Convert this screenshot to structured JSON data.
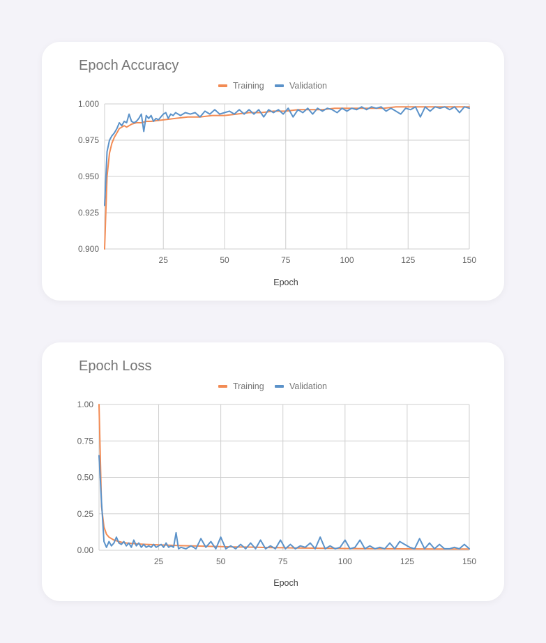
{
  "chart_data": [
    {
      "type": "line",
      "title": "Epoch Accuracy",
      "xlabel": "Epoch",
      "ylabel": "",
      "xlim": [
        1,
        150
      ],
      "ylim": [
        0.9,
        1.0
      ],
      "xticks": [
        25,
        50,
        75,
        100,
        125,
        150
      ],
      "yticks": [
        0.9,
        0.925,
        0.95,
        0.975,
        1.0
      ],
      "ytick_labels": [
        "0.900",
        "0.925",
        "0.950",
        "0.975",
        "1.000"
      ],
      "grid": true,
      "legend_position": "top-center",
      "series": [
        {
          "name": "Training",
          "color": "#f28b54",
          "x": [
            1,
            2,
            3,
            4,
            5,
            6,
            7,
            8,
            9,
            10,
            12,
            14,
            16,
            18,
            20,
            25,
            30,
            35,
            40,
            45,
            50,
            55,
            60,
            65,
            70,
            75,
            80,
            85,
            90,
            95,
            100,
            105,
            110,
            115,
            120,
            125,
            130,
            135,
            140,
            145,
            150
          ],
          "y": [
            0.9,
            0.95,
            0.966,
            0.973,
            0.977,
            0.98,
            0.983,
            0.984,
            0.985,
            0.984,
            0.986,
            0.987,
            0.987,
            0.988,
            0.988,
            0.989,
            0.99,
            0.991,
            0.991,
            0.992,
            0.992,
            0.993,
            0.994,
            0.994,
            0.995,
            0.995,
            0.996,
            0.996,
            0.996,
            0.997,
            0.997,
            0.997,
            0.997,
            0.997,
            0.998,
            0.998,
            0.998,
            0.998,
            0.998,
            0.998,
            0.998
          ]
        },
        {
          "name": "Validation",
          "color": "#5b92c9",
          "x": [
            1,
            2,
            3,
            4,
            5,
            6,
            7,
            8,
            9,
            10,
            11,
            12,
            13,
            14,
            15,
            16,
            17,
            18,
            19,
            20,
            21,
            22,
            23,
            24,
            25,
            26,
            27,
            28,
            29,
            30,
            32,
            34,
            36,
            38,
            40,
            42,
            44,
            46,
            48,
            50,
            52,
            54,
            56,
            58,
            60,
            62,
            64,
            66,
            68,
            70,
            72,
            74,
            76,
            78,
            80,
            82,
            84,
            86,
            88,
            90,
            92,
            94,
            96,
            98,
            100,
            102,
            104,
            106,
            108,
            110,
            112,
            114,
            116,
            118,
            120,
            122,
            124,
            126,
            128,
            130,
            132,
            134,
            136,
            138,
            140,
            142,
            144,
            146,
            148,
            150
          ],
          "y": [
            0.93,
            0.967,
            0.975,
            0.978,
            0.98,
            0.983,
            0.987,
            0.985,
            0.988,
            0.987,
            0.993,
            0.988,
            0.987,
            0.988,
            0.99,
            0.993,
            0.981,
            0.992,
            0.99,
            0.992,
            0.988,
            0.99,
            0.989,
            0.991,
            0.993,
            0.994,
            0.99,
            0.993,
            0.992,
            0.994,
            0.992,
            0.994,
            0.993,
            0.994,
            0.991,
            0.995,
            0.993,
            0.996,
            0.993,
            0.994,
            0.995,
            0.993,
            0.996,
            0.993,
            0.996,
            0.993,
            0.996,
            0.991,
            0.996,
            0.994,
            0.996,
            0.993,
            0.997,
            0.991,
            0.996,
            0.994,
            0.997,
            0.993,
            0.997,
            0.995,
            0.997,
            0.996,
            0.994,
            0.997,
            0.995,
            0.997,
            0.996,
            0.998,
            0.996,
            0.998,
            0.997,
            0.998,
            0.995,
            0.997,
            0.995,
            0.993,
            0.997,
            0.996,
            0.998,
            0.991,
            0.998,
            0.995,
            0.998,
            0.997,
            0.998,
            0.996,
            0.998,
            0.994,
            0.998,
            0.997
          ]
        }
      ]
    },
    {
      "type": "line",
      "title": "Epoch Loss",
      "xlabel": "Epoch",
      "ylabel": "",
      "xlim": [
        1,
        150
      ],
      "ylim": [
        0,
        1.0
      ],
      "xticks": [
        25,
        50,
        75,
        100,
        125,
        150
      ],
      "yticks": [
        0,
        0.25,
        0.5,
        0.75,
        1.0
      ],
      "ytick_labels": [
        "0.00",
        "0.25",
        "0.50",
        "0.75",
        "1.00"
      ],
      "grid": true,
      "legend_position": "top-center",
      "series": [
        {
          "name": "Training",
          "color": "#f28b54",
          "x": [
            1,
            2,
            3,
            4,
            5,
            6,
            7,
            8,
            9,
            10,
            12,
            14,
            16,
            18,
            20,
            25,
            30,
            35,
            40,
            45,
            50,
            55,
            60,
            65,
            70,
            75,
            80,
            85,
            90,
            95,
            100,
            110,
            120,
            130,
            140,
            150
          ],
          "y": [
            1.0,
            0.3,
            0.16,
            0.11,
            0.09,
            0.08,
            0.07,
            0.065,
            0.06,
            0.055,
            0.05,
            0.047,
            0.044,
            0.042,
            0.04,
            0.037,
            0.034,
            0.031,
            0.029,
            0.027,
            0.025,
            0.023,
            0.022,
            0.02,
            0.018,
            0.017,
            0.016,
            0.015,
            0.014,
            0.013,
            0.012,
            0.011,
            0.01,
            0.009,
            0.008,
            0.008
          ]
        },
        {
          "name": "Validation",
          "color": "#5b92c9",
          "x": [
            1,
            2,
            3,
            4,
            5,
            6,
            7,
            8,
            9,
            10,
            11,
            12,
            13,
            14,
            15,
            16,
            17,
            18,
            19,
            20,
            21,
            22,
            23,
            24,
            25,
            26,
            27,
            28,
            29,
            30,
            31,
            32,
            33,
            34,
            36,
            38,
            40,
            42,
            44,
            46,
            48,
            50,
            52,
            54,
            56,
            58,
            60,
            62,
            64,
            66,
            68,
            70,
            72,
            74,
            76,
            78,
            80,
            82,
            84,
            86,
            88,
            90,
            92,
            94,
            96,
            98,
            100,
            102,
            104,
            106,
            108,
            110,
            112,
            114,
            116,
            118,
            120,
            122,
            124,
            126,
            128,
            130,
            132,
            134,
            136,
            138,
            140,
            142,
            144,
            146,
            148,
            150
          ],
          "y": [
            0.65,
            0.33,
            0.06,
            0.02,
            0.06,
            0.03,
            0.05,
            0.09,
            0.05,
            0.04,
            0.06,
            0.03,
            0.05,
            0.02,
            0.07,
            0.03,
            0.05,
            0.02,
            0.04,
            0.02,
            0.03,
            0.02,
            0.04,
            0.02,
            0.03,
            0.04,
            0.02,
            0.05,
            0.02,
            0.03,
            0.02,
            0.12,
            0.01,
            0.02,
            0.01,
            0.03,
            0.01,
            0.08,
            0.02,
            0.06,
            0.01,
            0.09,
            0.01,
            0.03,
            0.01,
            0.04,
            0.01,
            0.05,
            0.01,
            0.07,
            0.01,
            0.03,
            0.01,
            0.07,
            0.01,
            0.04,
            0.01,
            0.03,
            0.02,
            0.05,
            0.01,
            0.09,
            0.01,
            0.03,
            0.01,
            0.02,
            0.07,
            0.01,
            0.02,
            0.07,
            0.01,
            0.03,
            0.01,
            0.02,
            0.01,
            0.05,
            0.01,
            0.06,
            0.04,
            0.02,
            0.01,
            0.08,
            0.01,
            0.05,
            0.01,
            0.04,
            0.01,
            0.01,
            0.02,
            0.01,
            0.04,
            0.01
          ]
        }
      ]
    }
  ]
}
